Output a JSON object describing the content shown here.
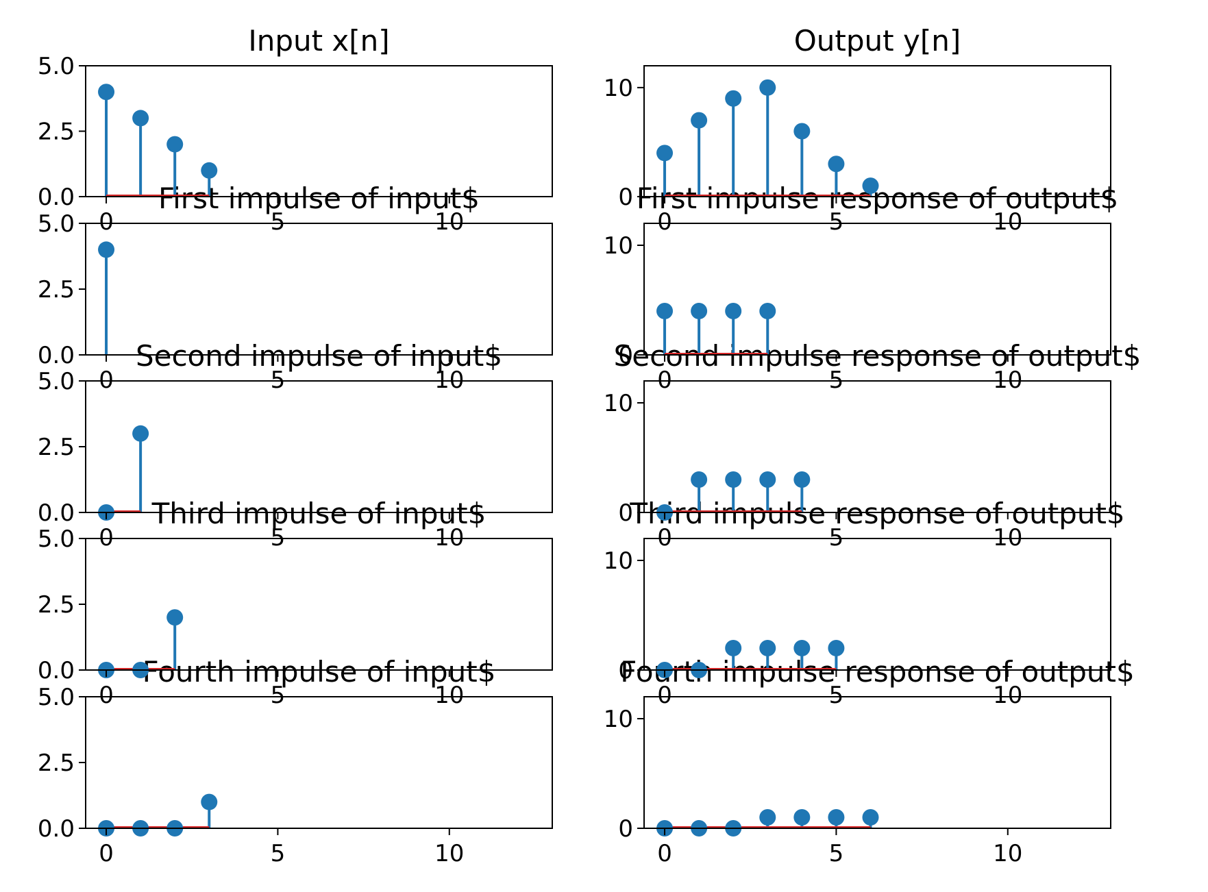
{
  "colors": {
    "stem": "#1f77b4",
    "baseline": "#d62728",
    "axes": "#000000",
    "background": "#ffffff"
  },
  "chart_data": [
    {
      "type": "stem",
      "title": "Input x[n]",
      "xlim": [
        -0.6,
        13
      ],
      "ylim": [
        0,
        5
      ],
      "xticks": [
        0,
        5,
        10
      ],
      "yticks": [
        0,
        2.5,
        5
      ],
      "xtick_labels": [
        "0",
        "5",
        "10"
      ],
      "ytick_labels": [
        "0.0",
        "2.5",
        "5.0"
      ],
      "x": [
        0,
        1,
        2,
        3
      ],
      "values": [
        4,
        3,
        2,
        1
      ]
    },
    {
      "type": "stem",
      "title": "Output y[n]",
      "xlim": [
        -0.6,
        13
      ],
      "ylim": [
        0,
        12
      ],
      "xticks": [
        0,
        5,
        10
      ],
      "yticks": [
        0,
        10
      ],
      "xtick_labels": [
        "0",
        "5",
        "10"
      ],
      "ytick_labels": [
        "0",
        "10"
      ],
      "x": [
        0,
        1,
        2,
        3,
        4,
        5,
        6
      ],
      "values": [
        4,
        7,
        9,
        10,
        6,
        3,
        1
      ]
    },
    {
      "type": "stem",
      "title": "First impulse of input$",
      "xlim": [
        -0.6,
        13
      ],
      "ylim": [
        0,
        5
      ],
      "xticks": [
        0,
        5,
        10
      ],
      "yticks": [
        0,
        2.5,
        5
      ],
      "xtick_labels": [
        "0",
        "5",
        "10"
      ],
      "ytick_labels": [
        "0.0",
        "2.5",
        "5.0"
      ],
      "x": [
        0
      ],
      "values": [
        4
      ]
    },
    {
      "type": "stem",
      "title": "First impulse response of output$",
      "xlim": [
        -0.6,
        13
      ],
      "ylim": [
        0,
        12
      ],
      "xticks": [
        0,
        5,
        10
      ],
      "yticks": [
        0,
        10
      ],
      "xtick_labels": [
        "0",
        "5",
        "10"
      ],
      "ytick_labels": [
        "0",
        "10"
      ],
      "x": [
        0,
        1,
        2,
        3
      ],
      "values": [
        4,
        4,
        4,
        4
      ]
    },
    {
      "type": "stem",
      "title": "Second impulse of input$",
      "xlim": [
        -0.6,
        13
      ],
      "ylim": [
        0,
        5
      ],
      "xticks": [
        0,
        5,
        10
      ],
      "yticks": [
        0,
        2.5,
        5
      ],
      "xtick_labels": [
        "0",
        "5",
        "10"
      ],
      "ytick_labels": [
        "0.0",
        "2.5",
        "5.0"
      ],
      "x": [
        0,
        1
      ],
      "values": [
        0,
        3
      ]
    },
    {
      "type": "stem",
      "title": "Second impulse response of output$",
      "xlim": [
        -0.6,
        13
      ],
      "ylim": [
        0,
        12
      ],
      "xticks": [
        0,
        5,
        10
      ],
      "yticks": [
        0,
        10
      ],
      "xtick_labels": [
        "0",
        "5",
        "10"
      ],
      "ytick_labels": [
        "0",
        "10"
      ],
      "x": [
        0,
        1,
        2,
        3,
        4
      ],
      "values": [
        0,
        3,
        3,
        3,
        3
      ]
    },
    {
      "type": "stem",
      "title": "Third impulse of input$",
      "xlim": [
        -0.6,
        13
      ],
      "ylim": [
        0,
        5
      ],
      "xticks": [
        0,
        5,
        10
      ],
      "yticks": [
        0,
        2.5,
        5
      ],
      "xtick_labels": [
        "0",
        "5",
        "10"
      ],
      "ytick_labels": [
        "0.0",
        "2.5",
        "5.0"
      ],
      "x": [
        0,
        1,
        2
      ],
      "values": [
        0,
        0,
        2
      ]
    },
    {
      "type": "stem",
      "title": "Third impulse response of output$",
      "xlim": [
        -0.6,
        13
      ],
      "ylim": [
        0,
        12
      ],
      "xticks": [
        0,
        5,
        10
      ],
      "yticks": [
        0,
        10
      ],
      "xtick_labels": [
        "0",
        "5",
        "10"
      ],
      "ytick_labels": [
        "0",
        "10"
      ],
      "x": [
        0,
        1,
        2,
        3,
        4,
        5
      ],
      "values": [
        0,
        0,
        2,
        2,
        2,
        2
      ]
    },
    {
      "type": "stem",
      "title": "Fourth impulse of input$",
      "xlim": [
        -0.6,
        13
      ],
      "ylim": [
        0,
        5
      ],
      "xticks": [
        0,
        5,
        10
      ],
      "yticks": [
        0,
        2.5,
        5
      ],
      "xtick_labels": [
        "0",
        "5",
        "10"
      ],
      "ytick_labels": [
        "0.0",
        "2.5",
        "5.0"
      ],
      "x": [
        0,
        1,
        2,
        3
      ],
      "values": [
        0,
        0,
        0,
        1
      ]
    },
    {
      "type": "stem",
      "title": "Fourth impulse response of output$",
      "xlim": [
        -0.6,
        13
      ],
      "ylim": [
        0,
        12
      ],
      "xticks": [
        0,
        5,
        10
      ],
      "yticks": [
        0,
        10
      ],
      "xtick_labels": [
        "0",
        "5",
        "10"
      ],
      "ytick_labels": [
        "0",
        "10"
      ],
      "x": [
        0,
        1,
        2,
        3,
        4,
        5,
        6
      ],
      "values": [
        0,
        0,
        0,
        1,
        1,
        1,
        1
      ]
    }
  ]
}
